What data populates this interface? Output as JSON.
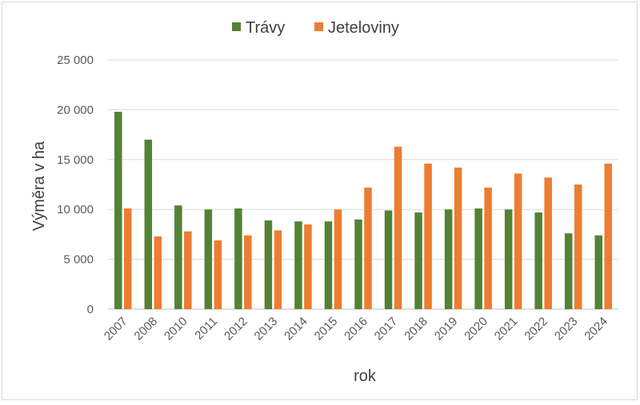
{
  "chart_data": {
    "type": "bar",
    "title": "",
    "xlabel": "rok",
    "ylabel": "Výměra v ha",
    "ylim": [
      0,
      25000
    ],
    "yticks": [
      0,
      5000,
      10000,
      15000,
      20000,
      25000
    ],
    "ytick_labels": [
      "0",
      "5 000",
      "10 000",
      "15 000",
      "20 000",
      "25 000"
    ],
    "grid": true,
    "legend_position": "top",
    "categories": [
      "2007",
      "2008",
      "2010",
      "2011",
      "2012",
      "2013",
      "2014",
      "2015",
      "2016",
      "2017",
      "2018",
      "2019",
      "2020",
      "2021",
      "2022",
      "2023",
      "2024"
    ],
    "series": [
      {
        "name": "Trávy",
        "color": "#548235",
        "values": [
          19800,
          17000,
          10400,
          10000,
          10100,
          8900,
          8800,
          8800,
          9000,
          9900,
          9700,
          10000,
          10100,
          10000,
          9700,
          7600,
          7400
        ]
      },
      {
        "name": "Jeteloviny",
        "color": "#ED7D31",
        "values": [
          10100,
          7300,
          7800,
          6900,
          7400,
          7900,
          8500,
          10000,
          12200,
          16300,
          14600,
          14200,
          12200,
          13600,
          13200,
          12500,
          14600
        ]
      }
    ]
  }
}
